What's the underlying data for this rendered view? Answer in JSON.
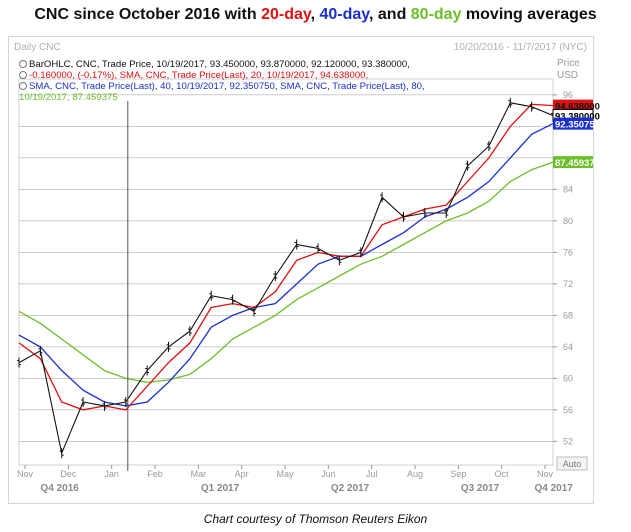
{
  "headline": {
    "prefix": "CNC since October 2016 with ",
    "day20": "20-day",
    "sep1": ", ",
    "day40": "40-day",
    "sep2": ", and ",
    "day80": "80-day",
    "suffix": " moving averages"
  },
  "chart_header": {
    "left": "Daily CNC",
    "right": "10/20/2016 - 11/7/2017 (NYC)"
  },
  "legend_lines": [
    "BarOHLC, CNC, Trade Price, 10/19/2017, 93.450000, 93.870000, 92.120000, 93.380000,",
    "-0.160000, (-0.17%), SMA, CNC, Trade Price(Last), 20, 10/19/2017, 94.638000,",
    "SMA, CNC, Trade Price(Last), 40, 10/19/2017, 92.350750, SMA, CNC, Trade Price(Last), 80,",
    "10/19/2017, 87.459375"
  ],
  "axis_unit": {
    "line1": "Price",
    "line2": "USD"
  },
  "auto_label": "Auto",
  "credit": "Chart courtesy of Thomson Reuters Eikon",
  "colors": {
    "bars": "#111111",
    "sma20": "#e01010",
    "sma40": "#1a2fd0",
    "sma80": "#6cbf2a"
  },
  "chart_data": {
    "type": "line",
    "title": "CNC since October 2016 with 20-day, 40-day, and 80-day moving averages",
    "ylim": [
      49,
      97
    ],
    "y_ticks": [
      52,
      56,
      60,
      64,
      68,
      72,
      76,
      80,
      84,
      88,
      92,
      96
    ],
    "y_tick_labels": [
      "52",
      "56",
      "60",
      "64",
      "68",
      "72",
      "76",
      "80",
      "84",
      "",
      "",
      "96"
    ],
    "grid": "horizontal",
    "month_labels": [
      "Nov",
      "Dec",
      "Jan",
      "Feb",
      "Mar",
      "Apr",
      "May",
      "Jun",
      "Jul",
      "Aug",
      "Sep",
      "Oct",
      "Nov"
    ],
    "quarter_labels": [
      "Q4 2016",
      "Q1 2017",
      "Q2 2017",
      "Q3 2017",
      "Q4 2017"
    ],
    "x": [
      "Oct 20",
      "Nov 1",
      "Nov 15",
      "Dec 1",
      "Dec 15",
      "Jan 3",
      "Jan 15",
      "Feb 1",
      "Feb 15",
      "Mar 1",
      "Mar 15",
      "Apr 1",
      "Apr 15",
      "May 1",
      "May 15",
      "Jun 1",
      "Jun 15",
      "Jul 1",
      "Jul 15",
      "Aug 1",
      "Aug 15",
      "Sep 1",
      "Sep 15",
      "Oct 1",
      "Oct 10",
      "Oct 19"
    ],
    "series": [
      {
        "name": "BarOHLC",
        "values": [
          62,
          63.5,
          50.5,
          57,
          56.5,
          57,
          61,
          64,
          66,
          70.5,
          70,
          68.5,
          73,
          77,
          76.5,
          75,
          76,
          83,
          80.5,
          81,
          81,
          87,
          89.5,
          95,
          94.5,
          93.38
        ]
      },
      {
        "name": "SMA 20",
        "values": [
          64.5,
          62.5,
          57,
          56,
          56.5,
          56,
          59,
          62,
          64.5,
          69,
          69.5,
          69,
          71,
          75,
          76,
          75.5,
          75.5,
          79.5,
          80.5,
          81.5,
          82,
          85,
          88,
          92,
          94.8,
          94.638
        ]
      },
      {
        "name": "SMA 40",
        "values": [
          65.5,
          64,
          61,
          58.5,
          57,
          56.5,
          57,
          59.5,
          62.5,
          66.5,
          68,
          69,
          69.5,
          72,
          74.5,
          75.5,
          75.5,
          77,
          78.5,
          80.5,
          81.5,
          83,
          85,
          88,
          91,
          92.35075
        ]
      },
      {
        "name": "SMA 80",
        "values": [
          68.5,
          67,
          65,
          63,
          61,
          60,
          59.5,
          59.8,
          60.5,
          62.5,
          65,
          66.5,
          68,
          70,
          71.5,
          73,
          74.5,
          75.5,
          77,
          78.5,
          80,
          81,
          82.5,
          85,
          86.5,
          87.459375
        ]
      }
    ],
    "last_value_labels": [
      {
        "series": "SMA 20",
        "value": 94.638,
        "text": "94.638000"
      },
      {
        "series": "BarOHLC",
        "value": 93.38,
        "text": "93.380000"
      },
      {
        "series": "SMA 40",
        "value": 92.35075,
        "text": "92.350750"
      },
      {
        "series": "SMA 80",
        "value": 87.459375,
        "text": "87.459375"
      }
    ]
  }
}
